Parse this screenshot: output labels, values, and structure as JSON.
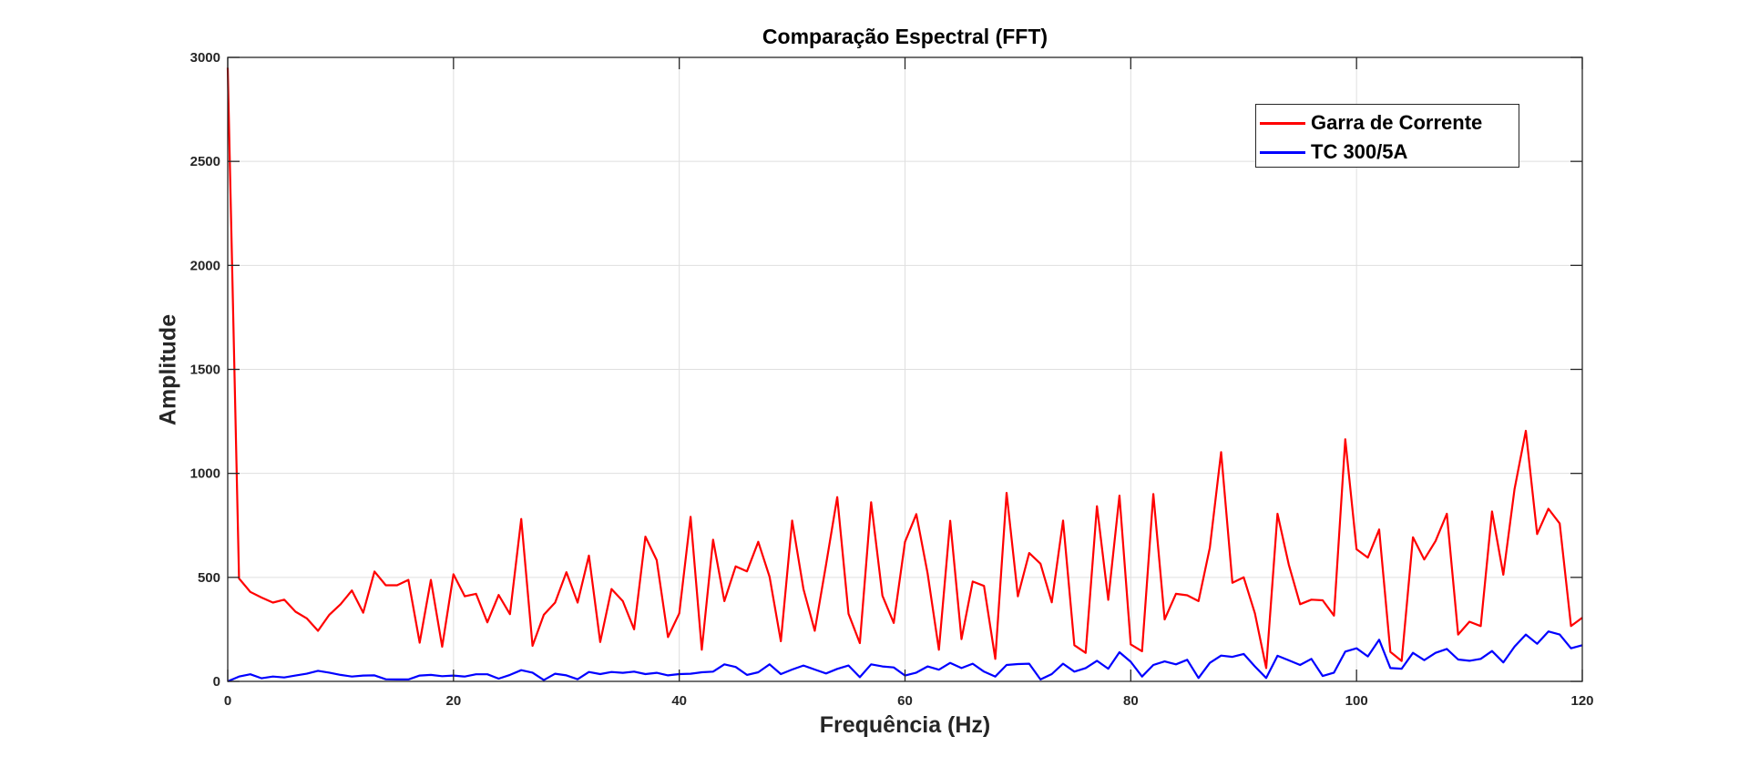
{
  "chart_data": {
    "type": "line",
    "title": "Comparação Espectral (FFT)",
    "xlabel": "Frequência (Hz)",
    "ylabel": "Amplitude",
    "xlim": [
      0,
      120
    ],
    "ylim": [
      0,
      3000
    ],
    "xticks": [
      0,
      20,
      40,
      60,
      80,
      100,
      120
    ],
    "yticks": [
      0,
      500,
      1000,
      1500,
      2000,
      2500,
      3000
    ],
    "grid": true,
    "legend_position": "upper right",
    "x": [
      0,
      1,
      2,
      3,
      4,
      5,
      6,
      7,
      8,
      9,
      10,
      11,
      12,
      13,
      14,
      15,
      16,
      17,
      18,
      19,
      20,
      21,
      22,
      23,
      24,
      25,
      26,
      27,
      28,
      29,
      30,
      31,
      32,
      33,
      34,
      35,
      36,
      37,
      38,
      39,
      40,
      41,
      42,
      43,
      44,
      45,
      46,
      47,
      48,
      49,
      50,
      51,
      52,
      53,
      54,
      55,
      56,
      57,
      58,
      59,
      60,
      61,
      62,
      63,
      64,
      65,
      66,
      67,
      68,
      69,
      70,
      71,
      72,
      73,
      74,
      75,
      76,
      77,
      78,
      79,
      80,
      81,
      82,
      83,
      84,
      85,
      86,
      87,
      88,
      89,
      90,
      91,
      92,
      93,
      94,
      95,
      96,
      97,
      98,
      99,
      100,
      101,
      102,
      103,
      104,
      105,
      106,
      107,
      108,
      109,
      110,
      111,
      112,
      113,
      114,
      115,
      116,
      117,
      118,
      119,
      120
    ],
    "series": [
      {
        "name": "Garra de Corrente",
        "color": "#ff0000",
        "values": [
          2950,
          495,
          430,
          403,
          379,
          393,
          335,
          303,
          243,
          320,
          371,
          437,
          330,
          528,
          462,
          462,
          488,
          186,
          488,
          167,
          515,
          409,
          421,
          284,
          415,
          323,
          781,
          171,
          320,
          379,
          525,
          379,
          605,
          189,
          444,
          386,
          250,
          696,
          583,
          213,
          327,
          791,
          152,
          681,
          386,
          553,
          529,
          671,
          503,
          193,
          773,
          444,
          243,
          561,
          886,
          325,
          184,
          861,
          412,
          281,
          671,
          804,
          519,
          152,
          772,
          203,
          480,
          459,
          108,
          906,
          409,
          617,
          566,
          380,
          773,
          174,
          137,
          842,
          392,
          893,
          178,
          145,
          901,
          298,
          421,
          414,
          386,
          642,
          1102,
          474,
          500,
          327,
          64,
          806,
          561,
          371,
          393,
          390,
          316,
          1164,
          635,
          595,
          730,
          142,
          98,
          693,
          586,
          675,
          806,
          225,
          287,
          266,
          817,
          513,
          924,
          1205,
          708,
          830,
          759,
          266,
          306
        ]
      },
      {
        "name": "TC 300/5A",
        "color": "#0000ff",
        "values": [
          0,
          23,
          34,
          15,
          23,
          19,
          28,
          37,
          51,
          42,
          31,
          23,
          28,
          29,
          10,
          9,
          9,
          28,
          31,
          25,
          28,
          23,
          34,
          34,
          13,
          31,
          54,
          42,
          6,
          37,
          29,
          10,
          45,
          35,
          45,
          41,
          47,
          35,
          41,
          29,
          35,
          37,
          44,
          47,
          82,
          69,
          31,
          44,
          82,
          35,
          57,
          76,
          57,
          38,
          60,
          76,
          20,
          82,
          72,
          67,
          28,
          42,
          72,
          56,
          89,
          64,
          85,
          47,
          23,
          79,
          83,
          85,
          9,
          35,
          85,
          47,
          64,
          99,
          61,
          140,
          94,
          23,
          79,
          96,
          82,
          104,
          16,
          89,
          124,
          118,
          132,
          72,
          16,
          123,
          101,
          79,
          108,
          26,
          42,
          143,
          159,
          120,
          200,
          64,
          61,
          137,
          102,
          137,
          156,
          105,
          99,
          108,
          146,
          91,
          167,
          225,
          181,
          240,
          225,
          159,
          174
        ]
      }
    ]
  },
  "style": {
    "axis_color": "#262626",
    "grid_color": "#dfdfdf",
    "background": "#ffffff"
  }
}
